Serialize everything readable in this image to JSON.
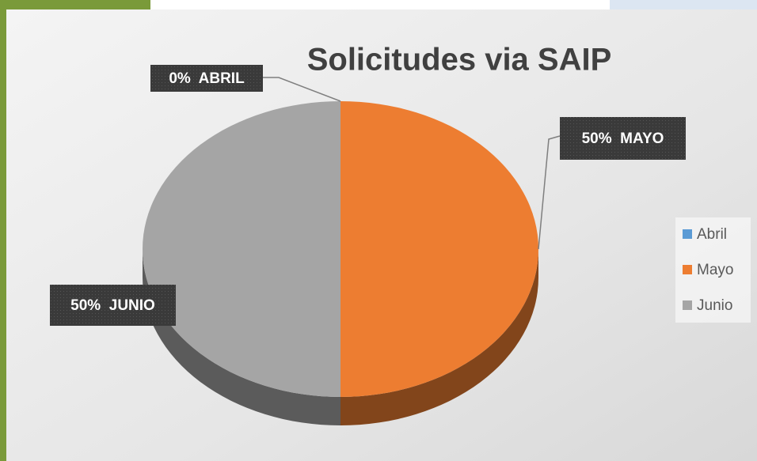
{
  "chart_data": {
    "type": "pie",
    "title": "Solicitudes via SAIP",
    "categories": [
      "Abril",
      "Mayo",
      "Junio"
    ],
    "values": [
      0,
      50,
      50
    ],
    "value_labels": [
      "0%  ABRIL",
      "50%  MAYO",
      "50%  JUNIO"
    ],
    "colors": [
      "#5b9bd5",
      "#ed7d31",
      "#a5a5a5"
    ],
    "legend": "right"
  }
}
